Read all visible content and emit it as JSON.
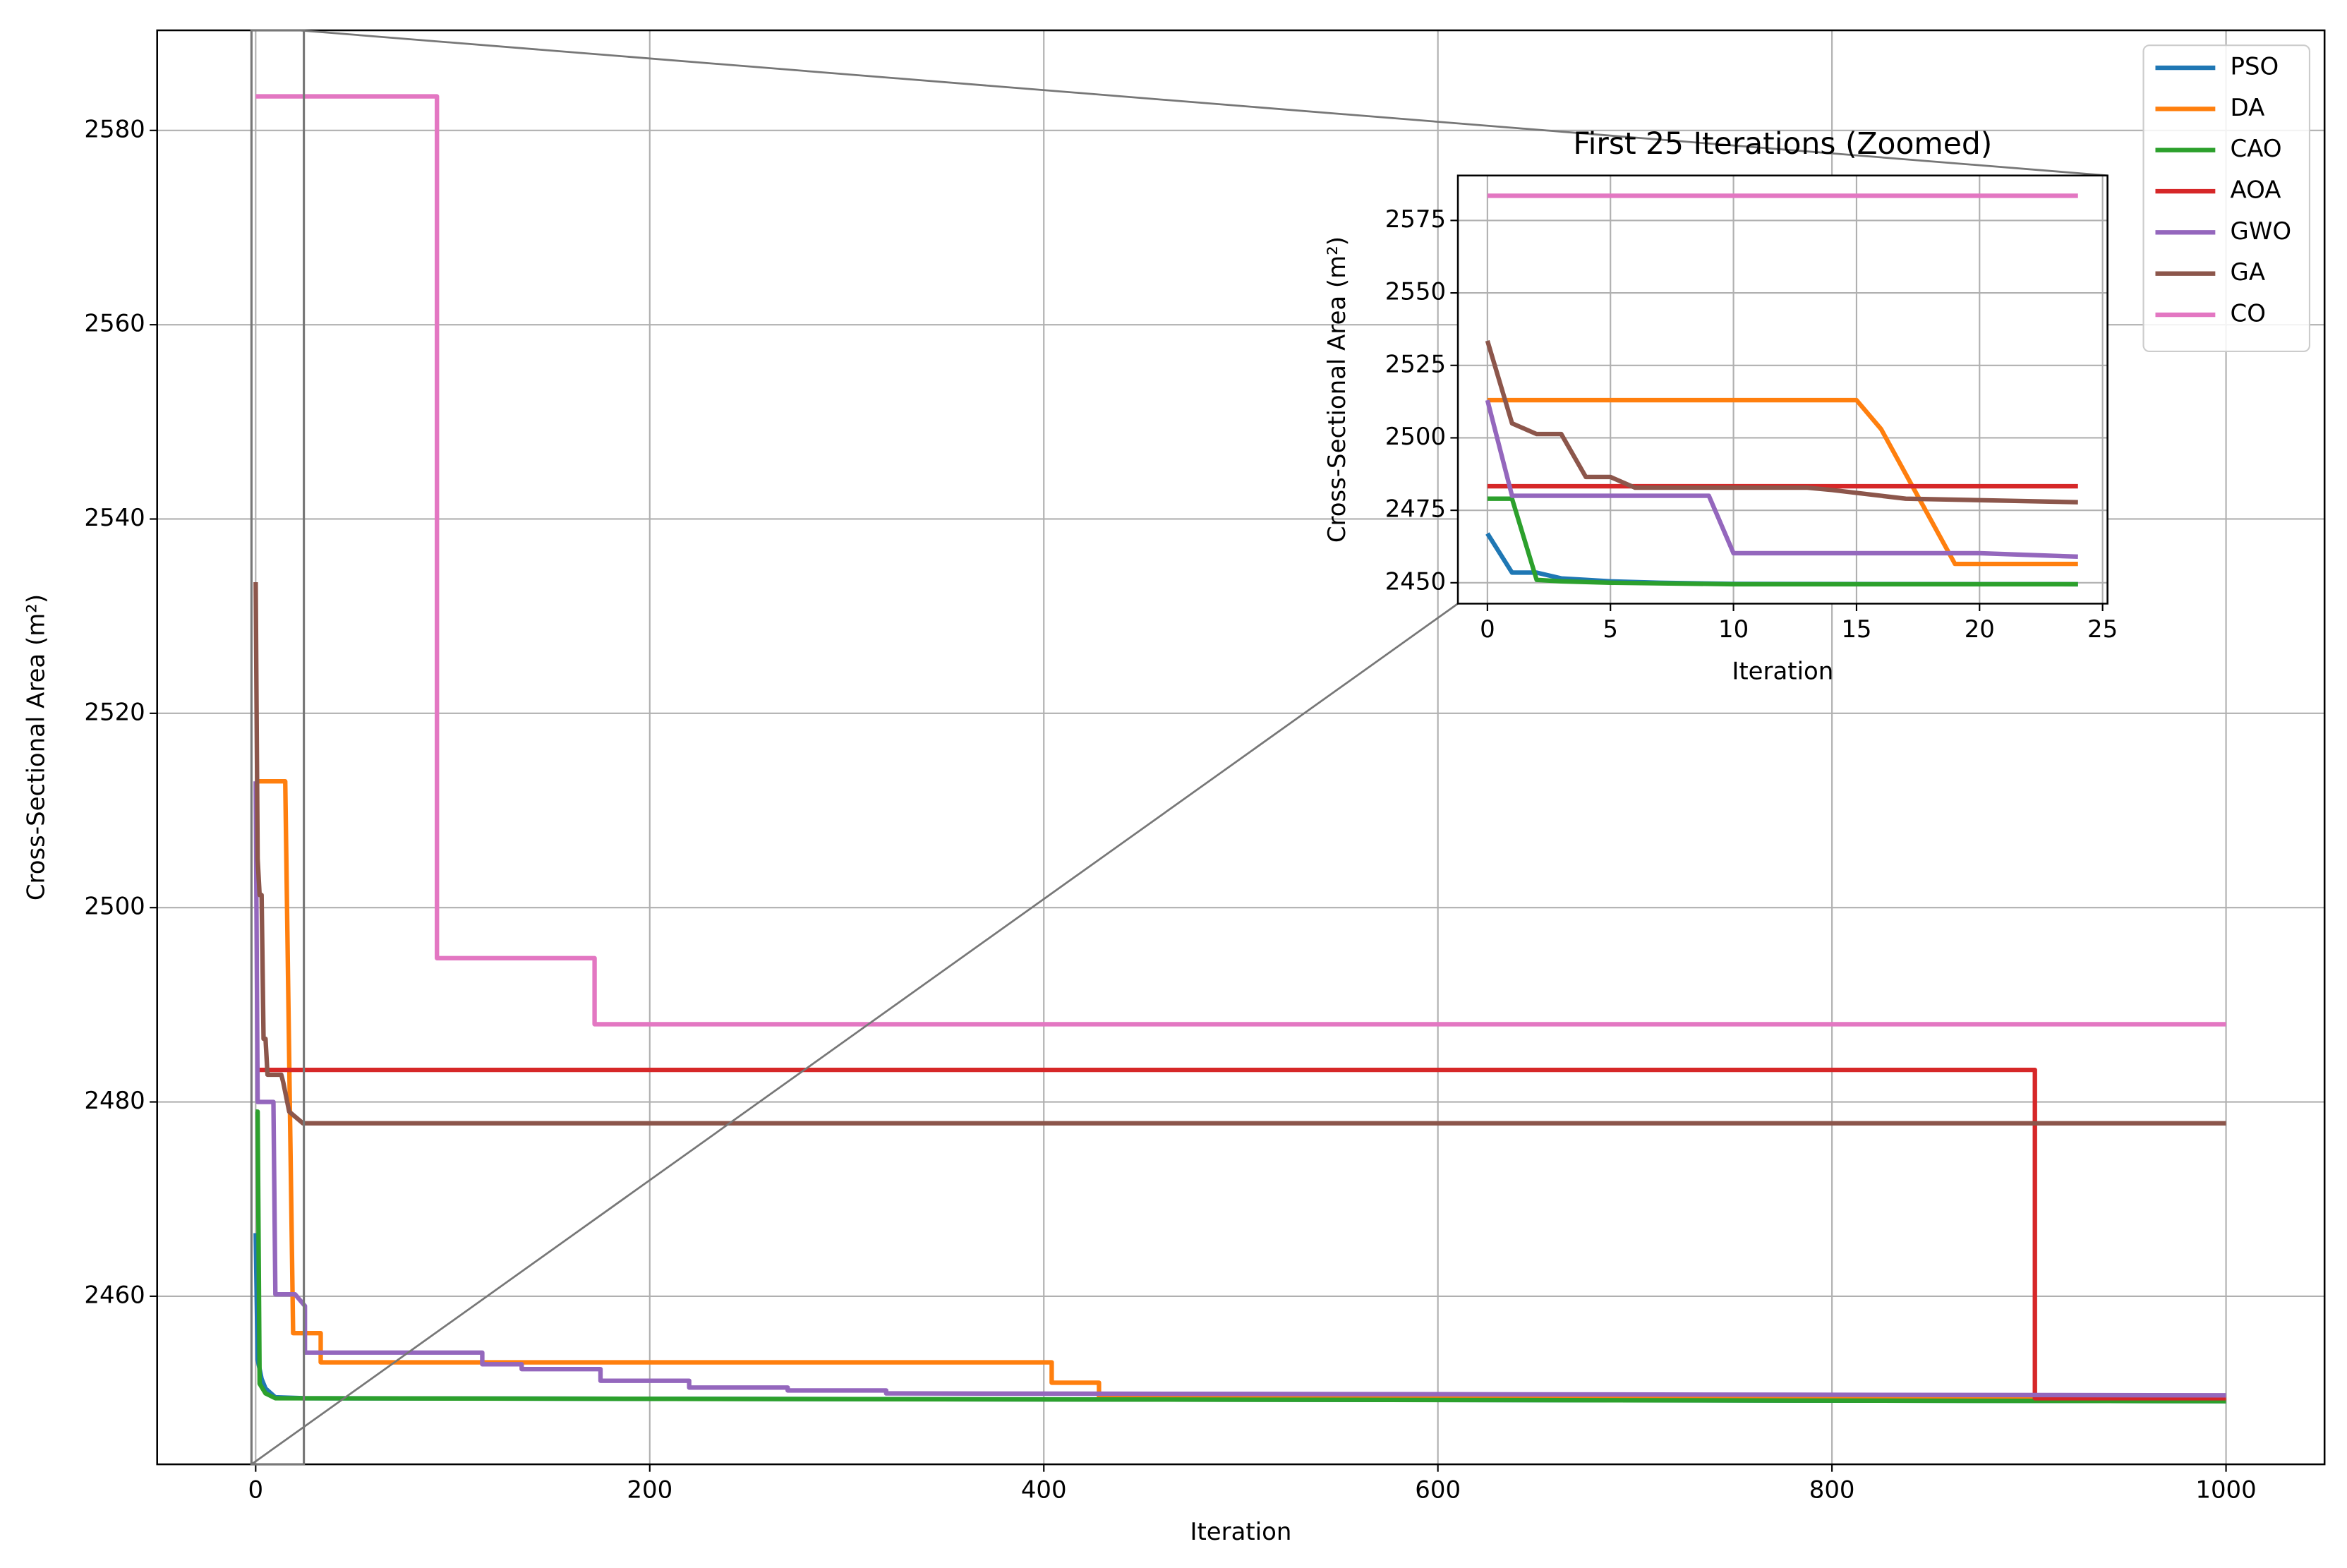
{
  "chart_data": [
    {
      "type": "line",
      "x_label": "Iteration",
      "y_label": "Cross-Sectional Area (m²)",
      "xlim": [
        -50,
        1050
      ],
      "ylim": [
        2442.7,
        2590.3
      ],
      "xticks": [
        0,
        200,
        400,
        600,
        800,
        1000
      ],
      "yticks": [
        2460,
        2480,
        2500,
        2520,
        2540,
        2560,
        2580
      ],
      "grid": true,
      "legend": "upper right",
      "series": [
        {
          "name": "PSO",
          "color": "#1f77b4",
          "x": [
            0,
            1,
            3,
            5,
            10,
            25,
            1000
          ],
          "values": [
            2466.5,
            2453.5,
            2451.5,
            2450.5,
            2449.6,
            2449.5,
            2449.2
          ]
        },
        {
          "name": "DA",
          "color": "#ff7f0e",
          "x": [
            0,
            15,
            19,
            33,
            33,
            404,
            404,
            428,
            428,
            1000
          ],
          "values": [
            2513,
            2513,
            2456.2,
            2456.2,
            2453.2,
            2453.2,
            2451.1,
            2451.1,
            2449.6,
            2449.6
          ]
        },
        {
          "name": "CAO",
          "color": "#2ca02c",
          "x": [
            0,
            1,
            2,
            5,
            10,
            1000
          ],
          "values": [
            2479,
            2479,
            2451,
            2450,
            2449.5,
            2449.2
          ]
        },
        {
          "name": "AOA",
          "color": "#d62728",
          "x": [
            0,
            903,
            903,
            1000
          ],
          "values": [
            2483.3,
            2483.3,
            2449.5,
            2449.5
          ]
        },
        {
          "name": "GWO",
          "color": "#9467bd",
          "x": [
            0,
            1,
            9,
            10,
            20,
            25,
            25,
            115,
            115,
            135,
            135,
            175,
            175,
            220,
            220,
            270,
            270,
            320,
            320,
            1000
          ],
          "values": [
            2513,
            2480,
            2480,
            2460.2,
            2460.2,
            2459,
            2454.2,
            2454.2,
            2453,
            2453,
            2452.5,
            2452.5,
            2451.3,
            2451.3,
            2450.6,
            2450.6,
            2450.3,
            2450.3,
            2450,
            2449.8
          ]
        },
        {
          "name": "GA",
          "color": "#8c564b",
          "x": [
            0,
            1,
            2,
            3,
            4,
            5,
            6,
            13,
            14,
            17,
            24,
            1000
          ],
          "values": [
            2533.5,
            2505,
            2501.3,
            2501.3,
            2486.5,
            2486.5,
            2482.8,
            2482.8,
            2482,
            2479,
            2477.8,
            2477.8
          ]
        },
        {
          "name": "CO",
          "color": "#e377c2",
          "x": [
            0,
            92,
            92,
            172,
            172,
            1000
          ],
          "values": [
            2583.5,
            2583.5,
            2494.8,
            2494.8,
            2488,
            2488
          ]
        }
      ]
    },
    {
      "type": "line",
      "title": "First 25 Iterations (Zoomed)",
      "x_label": "Iteration",
      "y_label": "Cross-Sectional Area (m²)",
      "xlim": [
        -1.2,
        25.2
      ],
      "ylim": [
        2442.8,
        2590.5
      ],
      "xticks": [
        0,
        5,
        10,
        15,
        20,
        25
      ],
      "yticks": [
        2450,
        2475,
        2500,
        2525,
        2550,
        2575
      ],
      "grid": true,
      "series": [
        {
          "color": "#1f77b4",
          "x": [
            0,
            1,
            2,
            3,
            4,
            5,
            7,
            10,
            24
          ],
          "values": [
            2467,
            2453.5,
            2453.5,
            2451.5,
            2451,
            2450.5,
            2450,
            2449.6,
            2449.5
          ]
        },
        {
          "color": "#ff7f0e",
          "x": [
            0,
            15,
            16,
            19,
            24
          ],
          "values": [
            2513,
            2513,
            2503,
            2456.5,
            2456.5
          ]
        },
        {
          "color": "#2ca02c",
          "x": [
            0,
            1,
            2,
            3,
            5,
            10,
            24
          ],
          "values": [
            2479,
            2479,
            2451,
            2450.5,
            2450,
            2449.5,
            2449.5
          ]
        },
        {
          "color": "#d62728",
          "x": [
            0,
            24
          ],
          "values": [
            2483.3,
            2483.3
          ]
        },
        {
          "color": "#9467bd",
          "x": [
            0,
            1,
            9,
            10,
            20,
            24
          ],
          "values": [
            2513,
            2480,
            2480,
            2460.2,
            2460.2,
            2459
          ]
        },
        {
          "color": "#8c564b",
          "x": [
            0,
            1,
            2,
            3,
            4,
            5,
            6,
            13,
            14,
            17,
            24
          ],
          "values": [
            2533.5,
            2505,
            2501.3,
            2501.3,
            2486.5,
            2486.5,
            2482.8,
            2482.8,
            2482,
            2479,
            2477.8
          ]
        },
        {
          "color": "#e377c2",
          "x": [
            0,
            24
          ],
          "values": [
            2583.5,
            2583.5
          ]
        }
      ]
    }
  ]
}
